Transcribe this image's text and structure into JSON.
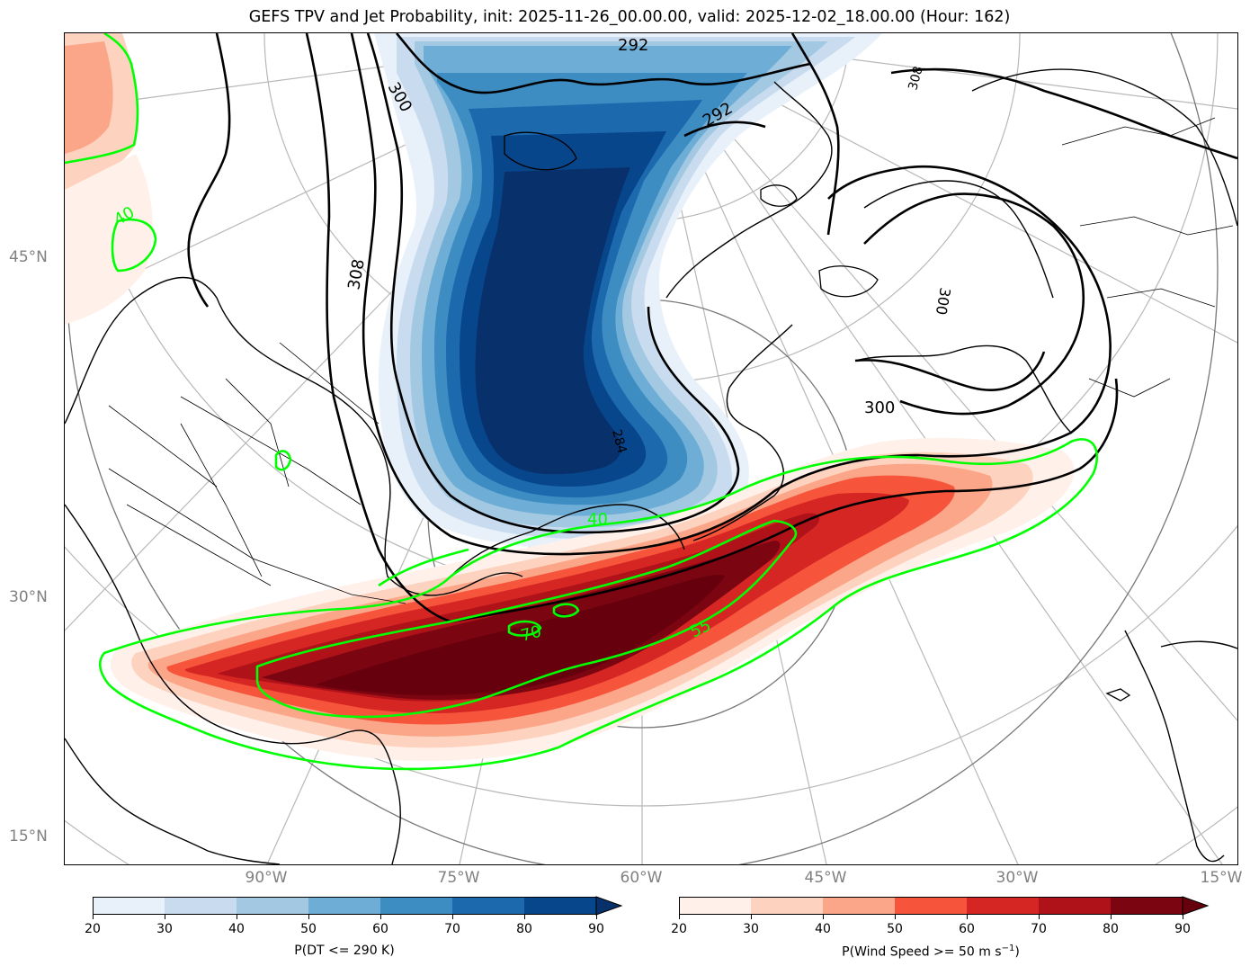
{
  "title": "GEFS TPV and Jet Probability, init: 2025-11-26_00.00.00, valid: 2025-12-02_18.00.00 (Hour: 162)",
  "lat_labels": [
    "45°N",
    "30°N",
    "15°N"
  ],
  "lon_labels": [
    "90°W",
    "75°W",
    "60°W",
    "45°W",
    "30°W",
    "15°W"
  ],
  "contour_labels": {
    "theta": [
      "292",
      "292",
      "300",
      "300",
      "308",
      "284",
      "308",
      "300"
    ],
    "jet": [
      "40",
      "40",
      "55",
      "70"
    ]
  },
  "colorbars": {
    "tpv": {
      "label": "P(DT <= 290 K)",
      "ticks": [
        "20",
        "30",
        "40",
        "50",
        "60",
        "70",
        "80",
        "90"
      ],
      "colors": [
        "#e8f1fa",
        "#c9dcef",
        "#a2c8e2",
        "#6eaed6",
        "#3d8dc3",
        "#1c69ad",
        "#08468c"
      ],
      "extend_color": "#08306b"
    },
    "jet": {
      "label": "P(Wind Speed >= 50 m s",
      "label_sup": "−1",
      "label_end": ")",
      "ticks": [
        "20",
        "30",
        "40",
        "50",
        "60",
        "70",
        "80",
        "90"
      ],
      "colors": [
        "#fff1ea",
        "#fdd2bf",
        "#fca689",
        "#f6553c",
        "#d62624",
        "#af1219",
        "#7b0510"
      ],
      "extend_color": "#67000d"
    }
  },
  "colors": {
    "jet_contour": "#00ff00",
    "theta_contour": "#000000",
    "graticule": "#b0b0b0",
    "axis_label": "#808080"
  }
}
